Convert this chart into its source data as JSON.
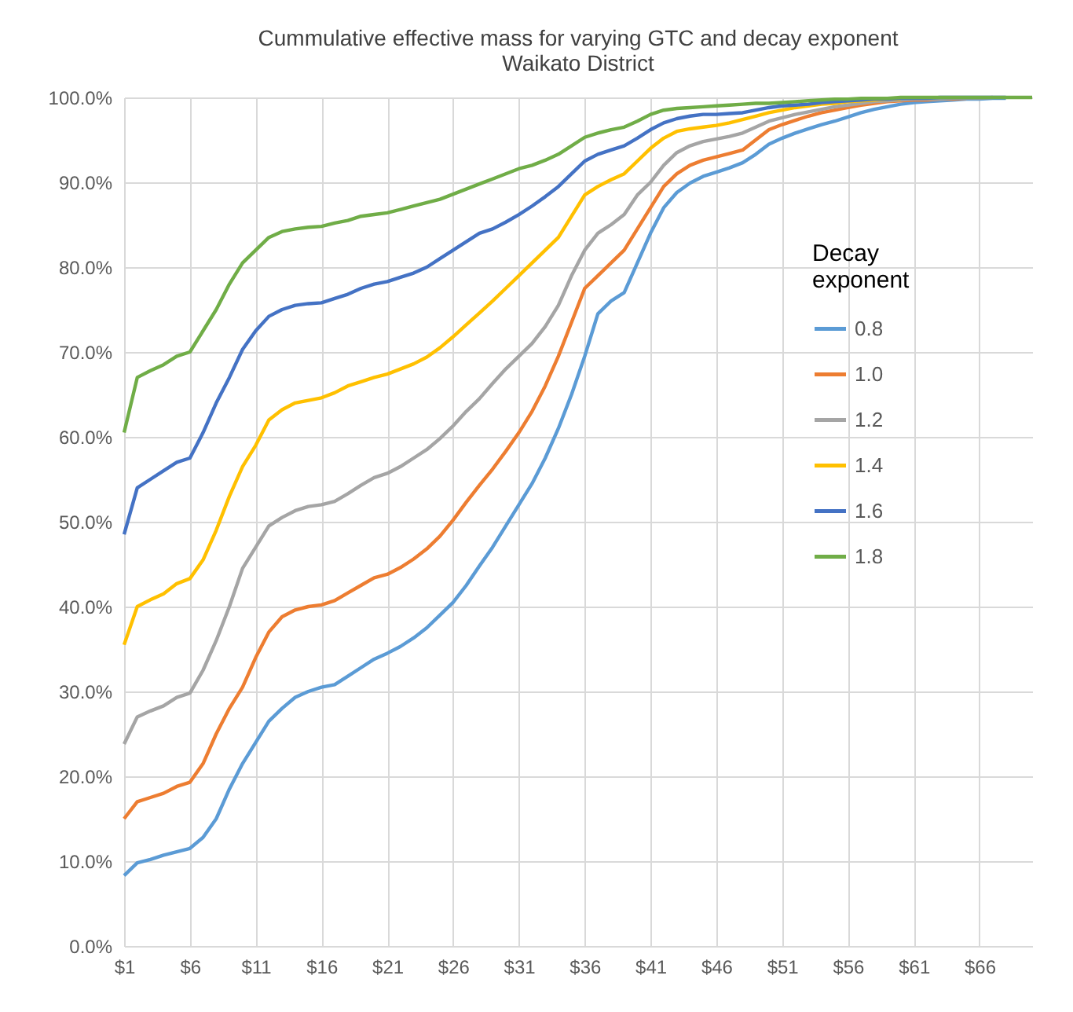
{
  "chart_data": {
    "type": "line",
    "title": "Cummulative effective mass for varying GTC and decay exponent",
    "subtitle": "Waikato District",
    "categories": [
      "$1",
      null,
      null,
      null,
      null,
      "$6",
      null,
      null,
      null,
      null,
      "$11",
      null,
      null,
      null,
      null,
      "$16",
      null,
      null,
      null,
      null,
      "$21",
      null,
      null,
      null,
      null,
      "$26",
      null,
      null,
      null,
      null,
      "$31",
      null,
      null,
      null,
      null,
      "$36",
      null,
      null,
      null,
      null,
      "$41",
      null,
      null,
      null,
      null,
      "$46",
      null,
      null,
      null,
      null,
      "$51",
      null,
      null,
      null,
      null,
      "$56",
      null,
      null,
      null,
      null,
      "$61",
      null,
      null,
      null,
      null,
      "$66",
      null,
      null,
      null,
      null
    ],
    "ylim": [
      0,
      100
    ],
    "yticks": [
      {
        "value": 0,
        "label": "0.0%"
      },
      {
        "value": 10,
        "label": "10.0%"
      },
      {
        "value": 20,
        "label": "20.0%"
      },
      {
        "value": 30,
        "label": "30.0%"
      },
      {
        "value": 40,
        "label": "40.0%"
      },
      {
        "value": 50,
        "label": "50.0%"
      },
      {
        "value": 60,
        "label": "60.0%"
      },
      {
        "value": 70,
        "label": "70.0%"
      },
      {
        "value": 80,
        "label": "80.0%"
      },
      {
        "value": 90,
        "label": "90.0%"
      },
      {
        "value": 100,
        "label": "100.0%"
      }
    ],
    "grid": true,
    "legend": "right",
    "legend_title": "Decay exponent",
    "marker": "none",
    "line_style": "solid",
    "series": [
      {
        "name": "0.8",
        "color": "#5b9bd5",
        "values": [
          8.3,
          9.8,
          10.2,
          10.7,
          11.1,
          11.5,
          12.8,
          15,
          18.5,
          21.5,
          24,
          26.5,
          28,
          29.3,
          30,
          30.5,
          30.8,
          31.8,
          32.8,
          33.8,
          34.5,
          35.3,
          36.3,
          37.5,
          39,
          40.5,
          42.5,
          44.8,
          47,
          49.5,
          52,
          54.5,
          57.5,
          61,
          65,
          69.5,
          74.5,
          76,
          77,
          80.5,
          84,
          87,
          88.8,
          89.9,
          90.7,
          91.2,
          91.7,
          92.3,
          93.3,
          94.5,
          95.2,
          95.8,
          96.3,
          96.8,
          97.2,
          97.7,
          98.2,
          98.6,
          98.9,
          99.2,
          99.4,
          99.5,
          99.6,
          99.7,
          99.8,
          99.8,
          99.9,
          99.9,
          null,
          null
        ]
      },
      {
        "name": "1.0",
        "color": "#ed7d31",
        "values": [
          15,
          17,
          17.5,
          18,
          18.8,
          19.3,
          21.5,
          25,
          28,
          30.5,
          34,
          37,
          38.8,
          39.6,
          40,
          40.2,
          40.7,
          41.6,
          42.5,
          43.4,
          43.8,
          44.6,
          45.6,
          46.8,
          48.3,
          50.2,
          52.3,
          54.3,
          56.2,
          58.3,
          60.5,
          63,
          66,
          69.5,
          73.5,
          77.5,
          79,
          80.5,
          82,
          84.5,
          87,
          89.5,
          91,
          92,
          92.6,
          93,
          93.4,
          93.8,
          95,
          96.2,
          96.8,
          97.3,
          97.8,
          98.2,
          98.5,
          98.8,
          99.1,
          99.3,
          99.5,
          99.6,
          99.7,
          99.7,
          99.8,
          99.8,
          99.9,
          null,
          null,
          null,
          null,
          null
        ]
      },
      {
        "name": "1.2",
        "color": "#a5a5a5",
        "values": [
          23.8,
          27,
          27.7,
          28.3,
          29.3,
          29.8,
          32.5,
          36,
          40,
          44.5,
          47,
          49.5,
          50.5,
          51.3,
          51.8,
          52,
          52.4,
          53.3,
          54.3,
          55.2,
          55.7,
          56.5,
          57.5,
          58.5,
          59.8,
          61.3,
          63,
          64.5,
          66.3,
          68,
          69.5,
          71,
          73,
          75.5,
          79,
          82,
          84,
          85,
          86.2,
          88.5,
          90,
          92,
          93.5,
          94.3,
          94.8,
          95.1,
          95.4,
          95.8,
          96.5,
          97.2,
          97.6,
          98,
          98.3,
          98.6,
          98.9,
          99.1,
          99.3,
          99.5,
          99.6,
          99.7,
          99.8,
          99.8,
          99.8,
          99.9,
          99.9,
          99.9,
          100,
          null,
          null,
          null
        ]
      },
      {
        "name": "1.4",
        "color": "#ffc000",
        "values": [
          35.5,
          40,
          40.8,
          41.5,
          42.7,
          43.3,
          45.5,
          49,
          53,
          56.5,
          59,
          62,
          63.2,
          64,
          64.3,
          64.6,
          65.2,
          66,
          66.5,
          67,
          67.4,
          68,
          68.6,
          69.4,
          70.5,
          71.8,
          73.2,
          74.6,
          76,
          77.5,
          79,
          80.5,
          82,
          83.5,
          86,
          88.5,
          89.5,
          90.3,
          91,
          92.5,
          94,
          95.2,
          96,
          96.3,
          96.5,
          96.7,
          97,
          97.4,
          97.8,
          98.2,
          98.5,
          98.8,
          99,
          99.2,
          99.3,
          99.5,
          99.6,
          99.7,
          99.8,
          99.8,
          null,
          null,
          null,
          null,
          null,
          null,
          null,
          null,
          null,
          null
        ]
      },
      {
        "name": "1.6",
        "color": "#4472c4",
        "values": [
          48.5,
          54,
          55,
          56,
          57,
          57.5,
          60.5,
          64,
          67,
          70.3,
          72.5,
          74.2,
          75,
          75.5,
          75.7,
          75.8,
          76.3,
          76.8,
          77.5,
          78,
          78.3,
          78.8,
          79.3,
          80,
          81,
          82,
          83,
          84,
          84.5,
          85.3,
          86.2,
          87.2,
          88.3,
          89.5,
          91,
          92.5,
          93.3,
          93.8,
          94.3,
          95.2,
          96.2,
          97,
          97.5,
          97.8,
          98,
          98,
          98.1,
          98.2,
          98.5,
          98.8,
          99,
          99.1,
          99.2,
          99.4,
          99.5,
          99.6,
          99.7,
          99.8,
          99.8,
          99.9,
          99.9,
          99.9,
          100,
          100,
          100,
          100,
          100,
          100,
          null,
          null
        ]
      },
      {
        "name": "1.8",
        "color": "#70ad47",
        "values": [
          60.5,
          67,
          67.8,
          68.5,
          69.5,
          70,
          72.5,
          75,
          78,
          80.5,
          82,
          83.5,
          84.2,
          84.5,
          84.7,
          84.8,
          85.2,
          85.5,
          86,
          86.2,
          86.4,
          86.8,
          87.2,
          87.6,
          88,
          88.6,
          89.2,
          89.8,
          90.4,
          91,
          91.6,
          92,
          92.6,
          93.3,
          94.3,
          95.3,
          95.8,
          96.2,
          96.5,
          97.2,
          98,
          98.5,
          98.7,
          98.8,
          98.9,
          99,
          99.1,
          99.2,
          99.3,
          99.3,
          99.4,
          99.5,
          99.6,
          99.7,
          99.8,
          99.8,
          99.9,
          99.9,
          99.9,
          100,
          100,
          100,
          100,
          100,
          100,
          100,
          100,
          100,
          100,
          100
        ]
      }
    ]
  }
}
